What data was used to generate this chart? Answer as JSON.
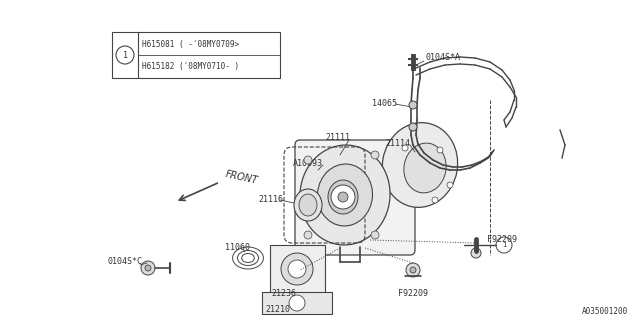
{
  "bg_color": "#ffffff",
  "line_color": "#444444",
  "text_color": "#333333",
  "diagram_id": "A035001200",
  "box_line1": "H615081 ( -'08MY0709>",
  "box_line2": "H615182 ('08MY0710- )",
  "figsize": [
    6.4,
    3.2
  ],
  "dpi": 100,
  "xlim": [
    0,
    640
  ],
  "ylim": [
    0,
    320
  ]
}
